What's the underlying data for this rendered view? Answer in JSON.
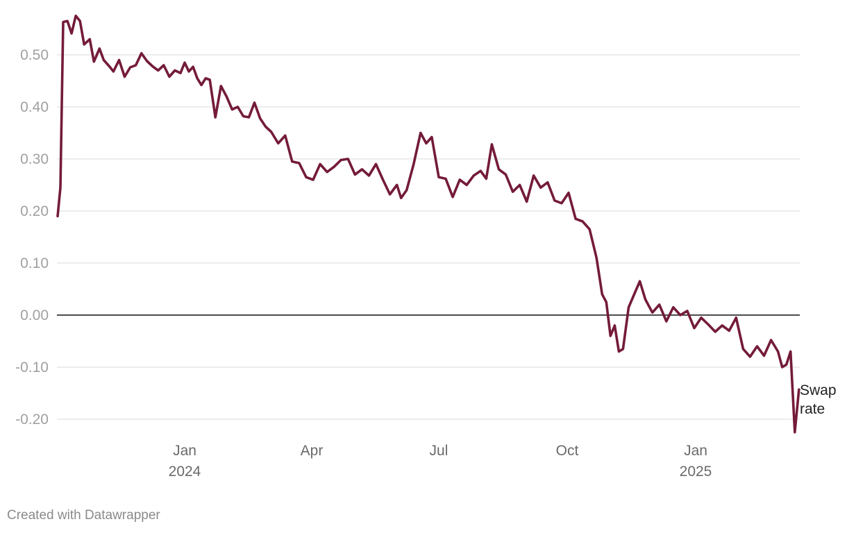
{
  "chart_data": {
    "type": "line",
    "title": "",
    "xlabel": "",
    "ylabel": "",
    "x_range": [
      "2023-10-01",
      "2025-03-31"
    ],
    "ylim": [
      -0.2,
      0.55
    ],
    "y_ticks": [
      0.5,
      0.4,
      0.3,
      0.2,
      0.1,
      0.0,
      -0.1,
      -0.2
    ],
    "y_tick_labels": [
      "0.50",
      "0.40",
      "0.30",
      "0.20",
      "0.10",
      "0.00",
      "-0.10",
      "-0.20"
    ],
    "x_ticks": [
      {
        "date": "2024-01-01",
        "label": "Jan",
        "year": "2024"
      },
      {
        "date": "2024-04-01",
        "label": "Apr",
        "year": ""
      },
      {
        "date": "2024-07-01",
        "label": "Jul",
        "year": ""
      },
      {
        "date": "2024-10-01",
        "label": "Oct",
        "year": ""
      },
      {
        "date": "2025-01-01",
        "label": "Jan",
        "year": "2025"
      }
    ],
    "grid": true,
    "zero_line": true,
    "series": [
      {
        "name": "Swap rate",
        "color": "#741b3a",
        "x": [
          "2023-10-02",
          "2023-10-04",
          "2023-10-06",
          "2023-10-09",
          "2023-10-12",
          "2023-10-15",
          "2023-10-18",
          "2023-10-21",
          "2023-10-25",
          "2023-10-28",
          "2023-11-01",
          "2023-11-04",
          "2023-11-08",
          "2023-11-11",
          "2023-11-15",
          "2023-11-19",
          "2023-11-23",
          "2023-11-27",
          "2023-12-01",
          "2023-12-05",
          "2023-12-09",
          "2023-12-13",
          "2023-12-17",
          "2023-12-21",
          "2023-12-25",
          "2023-12-29",
          "2024-01-01",
          "2024-01-04",
          "2024-01-07",
          "2024-01-10",
          "2024-01-13",
          "2024-01-16",
          "2024-01-19",
          "2024-01-23",
          "2024-01-27",
          "2024-01-31",
          "2024-02-04",
          "2024-02-08",
          "2024-02-12",
          "2024-02-16",
          "2024-02-20",
          "2024-02-24",
          "2024-02-28",
          "2024-03-03",
          "2024-03-08",
          "2024-03-13",
          "2024-03-18",
          "2024-03-23",
          "2024-03-28",
          "2024-04-02",
          "2024-04-07",
          "2024-04-12",
          "2024-04-17",
          "2024-04-22",
          "2024-04-27",
          "2024-05-02",
          "2024-05-07",
          "2024-05-12",
          "2024-05-17",
          "2024-05-22",
          "2024-05-27",
          "2024-06-01",
          "2024-06-04",
          "2024-06-08",
          "2024-06-13",
          "2024-06-18",
          "2024-06-22",
          "2024-06-26",
          "2024-07-01",
          "2024-07-06",
          "2024-07-11",
          "2024-07-16",
          "2024-07-21",
          "2024-07-26",
          "2024-07-31",
          "2024-08-04",
          "2024-08-08",
          "2024-08-13",
          "2024-08-18",
          "2024-08-23",
          "2024-08-28",
          "2024-09-02",
          "2024-09-07",
          "2024-09-12",
          "2024-09-17",
          "2024-09-22",
          "2024-09-27",
          "2024-10-02",
          "2024-10-07",
          "2024-10-12",
          "2024-10-17",
          "2024-10-22",
          "2024-10-26",
          "2024-10-29",
          "2024-11-01",
          "2024-11-04",
          "2024-11-07",
          "2024-11-10",
          "2024-11-14",
          "2024-11-18",
          "2024-11-22",
          "2024-11-26",
          "2024-12-01",
          "2024-12-06",
          "2024-12-11",
          "2024-12-16",
          "2024-12-21",
          "2024-12-26",
          "2024-12-31",
          "2025-01-05",
          "2025-01-10",
          "2025-01-15",
          "2025-01-20",
          "2025-01-25",
          "2025-01-30",
          "2025-02-04",
          "2025-02-09",
          "2025-02-14",
          "2025-02-19",
          "2025-02-24",
          "2025-03-01",
          "2025-03-04",
          "2025-03-07",
          "2025-03-10",
          "2025-03-13",
          "2025-03-16"
        ],
        "y": [
          0.19,
          0.245,
          0.563,
          0.565,
          0.541,
          0.575,
          0.565,
          0.52,
          0.53,
          0.487,
          0.512,
          0.49,
          0.478,
          0.468,
          0.49,
          0.458,
          0.476,
          0.48,
          0.503,
          0.488,
          0.478,
          0.47,
          0.48,
          0.458,
          0.47,
          0.465,
          0.485,
          0.468,
          0.477,
          0.455,
          0.442,
          0.455,
          0.452,
          0.38,
          0.44,
          0.42,
          0.395,
          0.4,
          0.382,
          0.38,
          0.408,
          0.378,
          0.362,
          0.352,
          0.33,
          0.345,
          0.295,
          0.292,
          0.265,
          0.26,
          0.29,
          0.275,
          0.285,
          0.298,
          0.3,
          0.27,
          0.28,
          0.268,
          0.29,
          0.26,
          0.232,
          0.25,
          0.225,
          0.24,
          0.29,
          0.35,
          0.33,
          0.342,
          0.265,
          0.262,
          0.227,
          0.26,
          0.25,
          0.268,
          0.277,
          0.262,
          0.328,
          0.28,
          0.27,
          0.237,
          0.25,
          0.218,
          0.268,
          0.245,
          0.255,
          0.22,
          0.215,
          0.235,
          0.185,
          0.18,
          0.165,
          0.11,
          0.04,
          0.025,
          -0.04,
          -0.02,
          -0.07,
          -0.065,
          0.015,
          0.04,
          0.065,
          0.03,
          0.005,
          0.02,
          -0.012,
          0.015,
          0.0,
          0.008,
          -0.025,
          -0.005,
          -0.018,
          -0.032,
          -0.02,
          -0.03,
          -0.005,
          -0.065,
          -0.08,
          -0.06,
          -0.078,
          -0.048,
          -0.07,
          -0.1,
          -0.095,
          -0.07,
          -0.225,
          -0.143
        ]
      }
    ]
  },
  "credit": "Created with Datawrapper"
}
